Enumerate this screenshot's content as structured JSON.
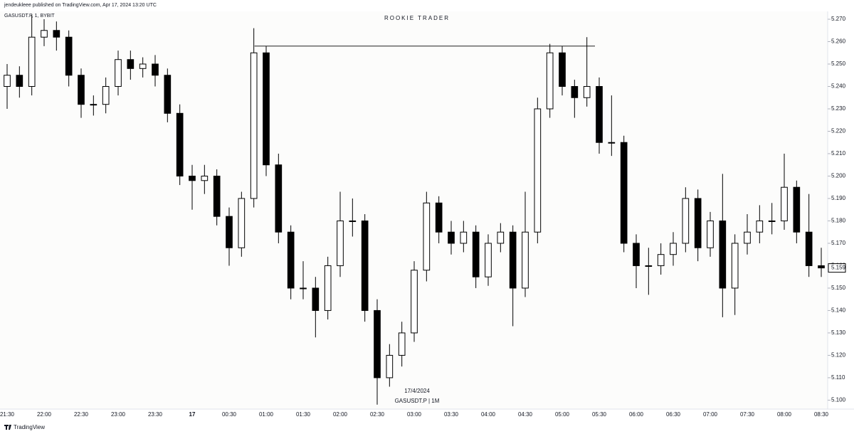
{
  "page": {
    "publisher": "jendeukleee published on TradingView.com, Apr 17, 2024 13:20 UTC",
    "symbol": "GASUSDT.P, 1, BYBIT",
    "watermark": "ROOKIE TRADER",
    "date_label": "17/4/2024",
    "symbol_label": "GASUSDT.P | 1M",
    "brand": "TradingView"
  },
  "chart_data": {
    "type": "candlestick",
    "level": 5.258,
    "categories": [
      "21:30",
      null,
      null,
      "22:00",
      null,
      null,
      "22:30",
      null,
      null,
      "23:00",
      null,
      null,
      "23:30",
      null,
      null,
      "17",
      null,
      null,
      "00:30",
      null,
      null,
      "01:00",
      null,
      null,
      "01:30",
      null,
      null,
      "02:00",
      null,
      null,
      "02:30",
      null,
      null,
      "03:00",
      null,
      null,
      "03:30",
      null,
      null,
      "04:00",
      null,
      null,
      "04:30",
      null,
      null,
      "05:00",
      null,
      null,
      "05:30",
      null,
      null,
      "06:00",
      null,
      null,
      "06:30",
      null,
      null,
      "07:00",
      null,
      null,
      "07:30",
      null,
      null,
      "08:00",
      null,
      null,
      "08:30"
    ],
    "open": [
      5.24,
      5.245,
      5.24,
      5.262,
      5.265,
      5.262,
      5.245,
      5.232,
      5.232,
      5.24,
      5.252,
      5.248,
      5.25,
      5.245,
      5.228,
      5.2,
      5.198,
      5.2,
      5.182,
      5.168,
      5.19,
      5.255,
      5.205,
      5.175,
      5.15,
      5.15,
      5.14,
      5.16,
      5.18,
      5.18,
      5.14,
      5.11,
      5.12,
      5.13,
      5.158,
      5.188,
      5.175,
      5.17,
      5.175,
      5.155,
      5.17,
      5.175,
      5.15,
      5.175,
      5.23,
      5.255,
      5.24,
      5.235,
      5.24,
      5.215,
      5.215,
      5.17,
      5.16,
      5.16,
      5.165,
      5.17,
      5.19,
      5.168,
      5.18,
      5.15,
      5.17,
      5.175,
      5.18,
      5.18,
      5.195,
      5.175,
      5.16
    ],
    "high": [
      5.25,
      5.249,
      5.272,
      5.27,
      5.269,
      5.265,
      5.248,
      5.236,
      5.244,
      5.256,
      5.256,
      5.253,
      5.254,
      5.248,
      5.232,
      5.205,
      5.205,
      5.203,
      5.186,
      5.193,
      5.266,
      5.258,
      5.21,
      5.178,
      5.162,
      5.155,
      5.164,
      5.193,
      5.19,
      5.183,
      5.145,
      5.125,
      5.135,
      5.162,
      5.193,
      5.191,
      5.18,
      5.18,
      5.178,
      5.174,
      5.179,
      5.178,
      5.193,
      5.235,
      5.259,
      5.258,
      5.243,
      5.262,
      5.244,
      5.236,
      5.218,
      5.174,
      5.168,
      5.17,
      5.175,
      5.195,
      5.194,
      5.184,
      5.201,
      5.174,
      5.183,
      5.187,
      5.188,
      5.21,
      5.198,
      5.192,
      5.168
    ],
    "low": [
      5.23,
      5.235,
      5.236,
      5.258,
      5.256,
      5.24,
      5.226,
      5.227,
      5.228,
      5.236,
      5.243,
      5.244,
      5.24,
      5.224,
      5.196,
      5.185,
      5.192,
      5.178,
      5.16,
      5.164,
      5.186,
      5.2,
      5.17,
      5.145,
      5.145,
      5.128,
      5.136,
      5.155,
      5.173,
      5.135,
      5.098,
      5.106,
      5.115,
      5.126,
      5.153,
      5.17,
      5.165,
      5.166,
      5.15,
      5.151,
      5.166,
      5.133,
      5.146,
      5.17,
      5.226,
      5.236,
      5.226,
      5.231,
      5.21,
      5.209,
      5.166,
      5.15,
      5.147,
      5.156,
      5.16,
      5.166,
      5.162,
      5.164,
      5.137,
      5.138,
      5.165,
      5.17,
      5.174,
      5.176,
      5.17,
      5.155,
      5.155
    ],
    "close": [
      5.245,
      5.24,
      5.262,
      5.265,
      5.262,
      5.245,
      5.232,
      5.232,
      5.24,
      5.252,
      5.248,
      5.25,
      5.245,
      5.228,
      5.2,
      5.198,
      5.2,
      5.182,
      5.168,
      5.19,
      5.255,
      5.205,
      5.175,
      5.15,
      5.15,
      5.14,
      5.16,
      5.18,
      5.18,
      5.14,
      5.11,
      5.12,
      5.13,
      5.158,
      5.188,
      5.175,
      5.17,
      5.175,
      5.155,
      5.17,
      5.175,
      5.15,
      5.175,
      5.23,
      5.255,
      5.24,
      5.235,
      5.24,
      5.215,
      5.215,
      5.17,
      5.16,
      5.16,
      5.165,
      5.17,
      5.19,
      5.168,
      5.18,
      5.15,
      5.17,
      5.175,
      5.18,
      5.18,
      5.195,
      5.175,
      5.16,
      5.159
    ],
    "ylim": [
      5.096,
      5.2735
    ],
    "yticks": [
      {
        "value": 5.1,
        "label": "5.100"
      },
      {
        "value": 5.11,
        "label": "5.110"
      },
      {
        "value": 5.12,
        "label": "5.120"
      },
      {
        "value": 5.13,
        "label": "5.130"
      },
      {
        "value": 5.14,
        "label": "5.140"
      },
      {
        "value": 5.15,
        "label": "5.150"
      },
      {
        "value": 5.16,
        "label": "5.160"
      },
      {
        "value": 5.17,
        "label": "5.170"
      },
      {
        "value": 5.18,
        "label": "5.180"
      },
      {
        "value": 5.19,
        "label": "5.190"
      },
      {
        "value": 5.2,
        "label": "5.200"
      },
      {
        "value": 5.21,
        "label": "5.210"
      },
      {
        "value": 5.22,
        "label": "5.220"
      },
      {
        "value": 5.23,
        "label": "5.230"
      },
      {
        "value": 5.24,
        "label": "5.240"
      },
      {
        "value": 5.25,
        "label": "5.250"
      },
      {
        "value": 5.26,
        "label": "5.260"
      },
      {
        "value": 5.27,
        "label": "5.270"
      }
    ]
  }
}
